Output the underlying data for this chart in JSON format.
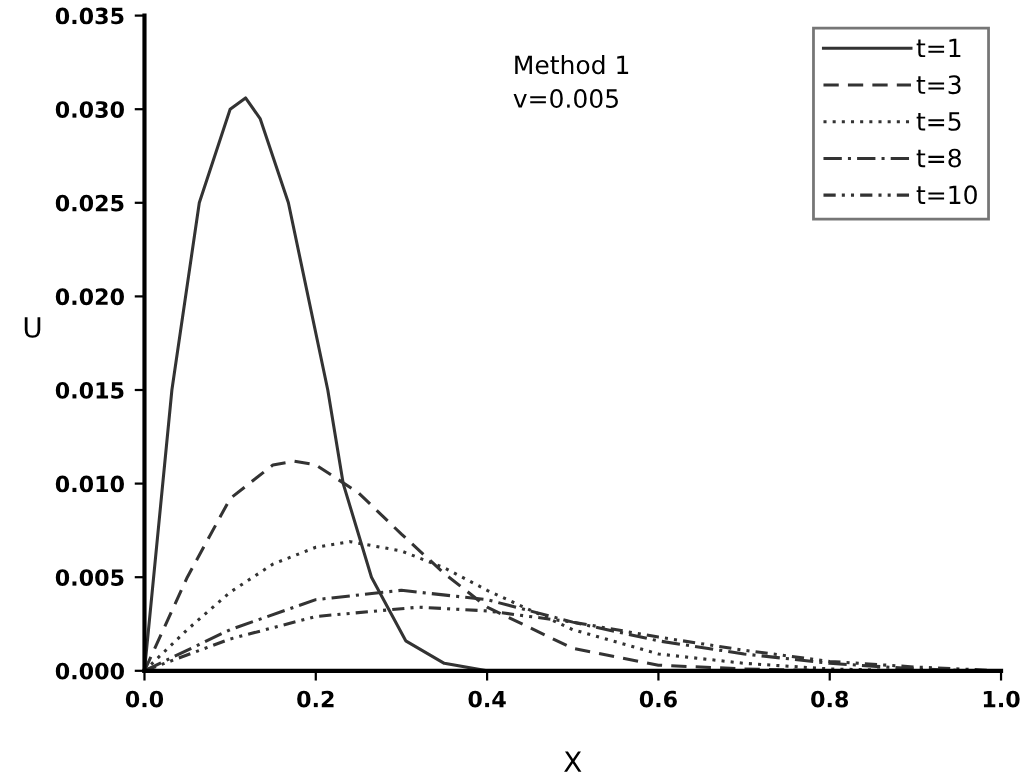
{
  "chart_data": {
    "type": "line",
    "xlabel": "X",
    "ylabel": "U",
    "xlim": [
      0,
      1
    ],
    "ylim": [
      0,
      0.035
    ],
    "xticks": [
      {
        "value": 0,
        "label": "0.0"
      },
      0.2,
      0.4,
      0.6,
      0.8,
      {
        "value": 1,
        "label": "1.0"
      }
    ],
    "yticks": [
      {
        "value": 0,
        "label": "0.000"
      },
      {
        "value": 0.005,
        "label": "0.005"
      },
      {
        "value": 0.01,
        "label": "0.010"
      },
      {
        "value": 0.015,
        "label": "0.015"
      },
      {
        "value": 0.02,
        "label": "0.020"
      },
      {
        "value": 0.025,
        "label": "0.025"
      },
      {
        "value": 0.03,
        "label": "0.030"
      },
      {
        "value": 0.035,
        "label": "0.035"
      }
    ],
    "grid": false,
    "legend": "top right",
    "marker": "none",
    "annotations": [
      {
        "text": "Method 1\nv=0.005"
      }
    ],
    "series": [
      {
        "name": "t=1",
        "color": "#333333",
        "line_style": "solid",
        "x": [
          0,
          0.032,
          0.064,
          0.1,
          0.118,
          0.135,
          0.168,
          0.214,
          0.232,
          0.265,
          0.305,
          0.35,
          0.4,
          0.45
        ],
        "values": [
          0,
          0.015,
          0.025,
          0.03,
          0.0306,
          0.0295,
          0.025,
          0.015,
          0.01,
          0.005,
          0.0016,
          0.0004,
          0,
          0
        ]
      },
      {
        "name": "t=3",
        "color": "#333333",
        "line_style": "dashed",
        "x": [
          0,
          0.05,
          0.1,
          0.15,
          0.175,
          0.2,
          0.25,
          0.3,
          0.35,
          0.4,
          0.5,
          0.6,
          0.7,
          0.8,
          0.88
        ],
        "values": [
          0,
          0.005,
          0.0092,
          0.011,
          0.0112,
          0.011,
          0.0095,
          0.0073,
          0.0052,
          0.0034,
          0.0012,
          0.0003,
          0.0001,
          0,
          0
        ]
      },
      {
        "name": "t=5",
        "color": "#333333",
        "line_style": "dotted",
        "x": [
          0,
          0.05,
          0.1,
          0.15,
          0.2,
          0.24,
          0.3,
          0.35,
          0.4,
          0.5,
          0.6,
          0.7,
          0.8,
          0.9,
          0.94
        ],
        "values": [
          0,
          0.0022,
          0.0042,
          0.0057,
          0.0066,
          0.0069,
          0.0064,
          0.0055,
          0.0043,
          0.0022,
          0.0009,
          0.0004,
          0.0001,
          0,
          0
        ]
      },
      {
        "name": "t=8",
        "color": "#333333",
        "line_style": "dashdot",
        "x": [
          0,
          0.1,
          0.2,
          0.3,
          0.4,
          0.5,
          0.6,
          0.7,
          0.8,
          0.9,
          0.97
        ],
        "values": [
          0,
          0.0022,
          0.0038,
          0.0043,
          0.0038,
          0.0026,
          0.0016,
          0.0009,
          0.0004,
          0.0001,
          0
        ]
      },
      {
        "name": "t=10",
        "color": "#333333",
        "line_style": "dashdotdot",
        "x": [
          0,
          0.1,
          0.2,
          0.32,
          0.4,
          0.5,
          0.6,
          0.7,
          0.8,
          0.9,
          1.0
        ],
        "values": [
          0,
          0.0017,
          0.0029,
          0.0034,
          0.0032,
          0.0026,
          0.0018,
          0.0011,
          0.0005,
          0.0002,
          0
        ]
      }
    ]
  }
}
